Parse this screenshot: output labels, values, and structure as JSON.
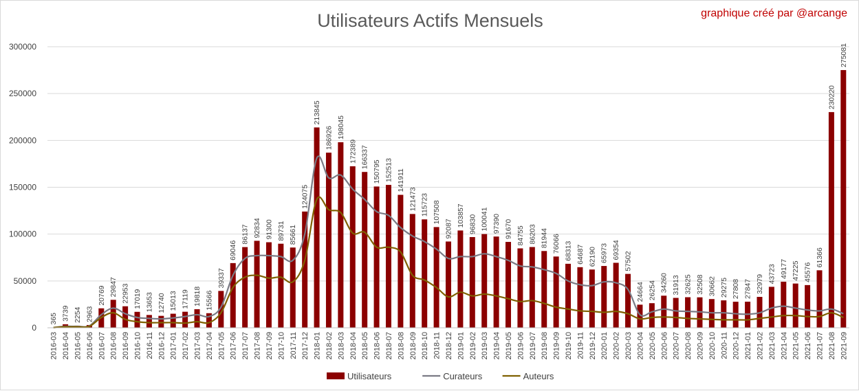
{
  "chart": {
    "title": "Utilisateurs Actifs Mensuels",
    "credit": "graphique créé par  @arcange"
  },
  "colors": {
    "bars": "#8b0000",
    "curateurs": "#7a7a84",
    "auteurs": "#7f6000",
    "grid": "#d9d9d9"
  },
  "chart_data": {
    "type": "bar",
    "title": "Utilisateurs Actifs Mensuels",
    "xlabel": "",
    "ylabel": "",
    "ylim": [
      0,
      300000
    ],
    "yticks": [
      0,
      50000,
      100000,
      150000,
      200000,
      250000,
      300000
    ],
    "grid": true,
    "legend_position": "bottom",
    "categories": [
      "2016-03",
      "2016-04",
      "2016-05",
      "2016-06",
      "2016-07",
      "2016-08",
      "2016-09",
      "2016-10",
      "2016-11",
      "2016-12",
      "2017-01",
      "2017-02",
      "2017-03",
      "2017-04",
      "2017-05",
      "2017-06",
      "2017-07",
      "2017-08",
      "2017-09",
      "2017-10",
      "2017-11",
      "2017-12",
      "2018-01",
      "2018-02",
      "2018-03",
      "2018-04",
      "2018-05",
      "2018-06",
      "2018-07",
      "2018-08",
      "2018-09",
      "2018-10",
      "2018-11",
      "2018-12",
      "2019-01",
      "2019-02",
      "2019-03",
      "2019-04",
      "2019-05",
      "2019-06",
      "2019-07",
      "2019-08",
      "2019-09",
      "2019-10",
      "2019-11",
      "2019-12",
      "2020-01",
      "2020-02",
      "2020-03",
      "2020-04",
      "2020-05",
      "2020-06",
      "2020-07",
      "2020-08",
      "2020-09",
      "2020-10",
      "2020-11",
      "2020-12",
      "2021-01",
      "2021-02",
      "2021-03",
      "2021-04",
      "2021-05",
      "2021-06",
      "2021-07",
      "2021-08",
      "2021-09"
    ],
    "series": [
      {
        "name": "Utilisateurs",
        "kind": "bar",
        "values": [
          365,
          3739,
          2254,
          2963,
          20769,
          29847,
          22953,
          17019,
          13653,
          12740,
          15013,
          17119,
          19818,
          15566,
          39337,
          69046,
          86137,
          92834,
          91300,
          89731,
          85661,
          124075,
          213845,
          186926,
          198045,
          172389,
          166337,
          150795,
          152513,
          141911,
          121473,
          115723,
          107508,
          92087,
          103857,
          96830,
          100041,
          97390,
          91670,
          84755,
          86203,
          81944,
          76066,
          68313,
          64687,
          62190,
          65973,
          69354,
          57502,
          24664,
          26254,
          34260,
          31913,
          32625,
          32508,
          30662,
          29275,
          27808,
          27847,
          32979,
          43723,
          49177,
          47225,
          45576,
          61366,
          230220,
          275081
        ]
      },
      {
        "name": "Curateurs",
        "kind": "line",
        "values": [
          300,
          1500,
          1500,
          2000,
          14000,
          21000,
          15000,
          11000,
          10000,
          9500,
          10500,
          12000,
          14000,
          12000,
          22000,
          56000,
          74000,
          77000,
          77000,
          76000,
          72000,
          100000,
          181000,
          160000,
          163000,
          148000,
          137000,
          124000,
          120000,
          107000,
          98000,
          92000,
          84000,
          74000,
          76000,
          76000,
          79000,
          76000,
          72000,
          66000,
          65000,
          62000,
          58000,
          50000,
          46000,
          45000,
          49000,
          48000,
          41000,
          14000,
          17000,
          20000,
          18000,
          17500,
          17000,
          16000,
          16000,
          15000,
          14500,
          16000,
          21000,
          23000,
          21000,
          19000,
          18000,
          20000,
          15000
        ]
      },
      {
        "name": "Auteurs",
        "kind": "line",
        "values": [
          200,
          1000,
          1000,
          1500,
          11000,
          16000,
          9000,
          6500,
          5500,
          5500,
          5500,
          5000,
          6500,
          5500,
          16000,
          43000,
          54000,
          56000,
          53000,
          54000,
          49000,
          72000,
          137000,
          126000,
          123000,
          101000,
          102000,
          86000,
          86000,
          81000,
          56000,
          51000,
          43000,
          33000,
          38000,
          34000,
          36000,
          34000,
          31000,
          28000,
          29000,
          26000,
          22000,
          20000,
          18000,
          17500,
          16500,
          17500,
          15000,
          9500,
          11000,
          11500,
          11000,
          10000,
          9500,
          9000,
          8500,
          8500,
          8500,
          10000,
          11500,
          13000,
          13000,
          12000,
          12000,
          16000,
          11000
        ]
      }
    ]
  }
}
